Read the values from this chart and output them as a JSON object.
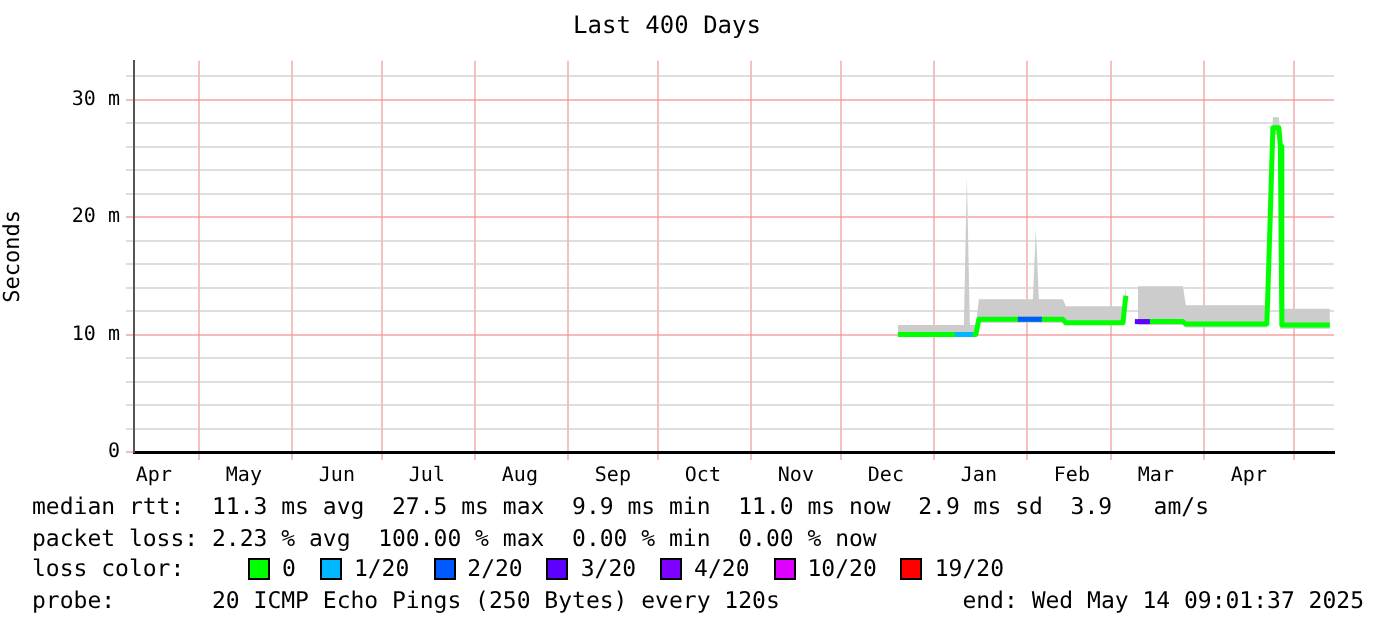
{
  "chart_data": {
    "type": "line",
    "title": "Last 400 Days",
    "ylabel": "Seconds",
    "legend_title": "loss color:",
    "legend": "bottom",
    "grid": true,
    "xlim": [
      "2024-04-09T09:01",
      "2025-05-14T09:01"
    ],
    "xticks": [
      {
        "value": "2024-04-16",
        "label": "Apr"
      },
      {
        "value": "2024-05-01",
        "label": null
      },
      {
        "value": "2024-05-16",
        "label": "May"
      },
      {
        "value": "2024-06-01",
        "label": null
      },
      {
        "value": "2024-06-16",
        "label": "Jun"
      },
      {
        "value": "2024-07-01",
        "label": null
      },
      {
        "value": "2024-07-16",
        "label": "Jul"
      },
      {
        "value": "2024-08-01",
        "label": null
      },
      {
        "value": "2024-08-16",
        "label": "Aug"
      },
      {
        "value": "2024-09-01",
        "label": null
      },
      {
        "value": "2024-09-16",
        "label": "Sep"
      },
      {
        "value": "2024-10-01",
        "label": null
      },
      {
        "value": "2024-10-16",
        "label": "Oct"
      },
      {
        "value": "2024-11-01",
        "label": null
      },
      {
        "value": "2024-11-16",
        "label": "Nov"
      },
      {
        "value": "2024-12-01",
        "label": null
      },
      {
        "value": "2024-12-16",
        "label": "Dec"
      },
      {
        "value": "2025-01-01",
        "label": null
      },
      {
        "value": "2025-01-16",
        "label": "Jan"
      },
      {
        "value": "2025-02-01",
        "label": null
      },
      {
        "value": "2025-02-16",
        "label": "Feb"
      },
      {
        "value": "2025-03-01",
        "label": null
      },
      {
        "value": "2025-03-16",
        "label": "Mar"
      },
      {
        "value": "2025-04-01",
        "label": null
      },
      {
        "value": "2025-04-16",
        "label": "Apr"
      },
      {
        "value": "2025-05-01",
        "label": null
      }
    ],
    "ylim": [
      0,
      33.3
    ],
    "yticks": [
      {
        "value": 0,
        "label": "0"
      },
      {
        "value": 2,
        "label": null
      },
      {
        "value": 4,
        "label": null
      },
      {
        "value": 6,
        "label": null
      },
      {
        "value": 8,
        "label": null
      },
      {
        "value": 10,
        "label": "10 m"
      },
      {
        "value": 12,
        "label": null
      },
      {
        "value": 14,
        "label": null
      },
      {
        "value": 16,
        "label": null
      },
      {
        "value": 18,
        "label": null
      },
      {
        "value": 20,
        "label": "20 m"
      },
      {
        "value": 22,
        "label": null
      },
      {
        "value": 24,
        "label": null
      },
      {
        "value": 26,
        "label": null
      },
      {
        "value": 28,
        "label": null
      },
      {
        "value": 30,
        "label": "30 m"
      },
      {
        "value": 32,
        "label": null
      }
    ],
    "series": [
      {
        "name": "0",
        "color": "#00ff00",
        "x": [
          "2024-12-20",
          "2025-01-11",
          "2025-01-12",
          "2025-01-13",
          "2025-01-15",
          "2025-01-16",
          "2025-02-03",
          "2025-02-04",
          "2025-02-05",
          "2025-02-13",
          "2025-02-14",
          "2025-03-05",
          "2025-03-06",
          "2025-03-07",
          "2025-03-10",
          "2025-03-25",
          "2025-03-26",
          "2025-04-22",
          "2025-04-23",
          "2025-04-24",
          "2025-04-26",
          "2025-04-26T12:00",
          "2025-04-27",
          "2025-05-13"
        ],
        "values": [
          10.0,
          10.0,
          10.0,
          10.0,
          10.0,
          11.3,
          11.3,
          11.3,
          11.3,
          11.3,
          11.0,
          11.0,
          13.3,
          null,
          11.1,
          11.1,
          10.9,
          10.9,
          19.0,
          27.6,
          27.6,
          26.0,
          10.8,
          10.8
        ],
        "lower": [
          9.8,
          9.8,
          9.8,
          9.8,
          9.8,
          11.0,
          11.0,
          11.0,
          11.0,
          11.0,
          10.8,
          10.8,
          11.0,
          null,
          10.8,
          10.8,
          10.6,
          10.6,
          18.5,
          27.0,
          27.0,
          25.5,
          10.5,
          10.5
        ],
        "upper": [
          10.8,
          10.8,
          23.5,
          10.8,
          10.8,
          13.0,
          13.0,
          19.0,
          13.0,
          13.0,
          12.4,
          12.4,
          14.0,
          null,
          14.1,
          14.1,
          12.5,
          12.5,
          20.5,
          28.5,
          28.5,
          27.0,
          12.2,
          12.2
        ]
      },
      {
        "name": "1/20",
        "color": "#00b8ff",
        "x": [
          "2025-01-08",
          "2025-01-14"
        ],
        "values": [
          10.0,
          10.0
        ]
      },
      {
        "name": "2/20",
        "color": "#0059ff",
        "x": [
          "2025-01-29",
          "2025-02-06"
        ],
        "values": [
          11.3,
          11.3
        ]
      },
      {
        "name": "3/20",
        "color": "#5e00ff",
        "x": [
          "2025-03-09",
          "2025-03-14"
        ],
        "values": [
          11.1,
          11.1
        ]
      },
      {
        "name": "4/20",
        "color": "#7e00ff"
      },
      {
        "name": "10/20",
        "color": "#dd00ff"
      },
      {
        "name": "19/20",
        "color": "#ff0000"
      }
    ],
    "annotations": [
      "median rtt:  11.3 ms avg  27.5 ms max  9.9 ms min  11.0 ms now  2.9 ms sd  3.9   am/s",
      "packet loss: 2.23 % avg  100.00 % max  0.00 % min  0.00 % now",
      "probe:       20 ICMP Echo Pings (250 Bytes) every 120s",
      "end: Wed May 14 09:01:37 2025"
    ]
  }
}
